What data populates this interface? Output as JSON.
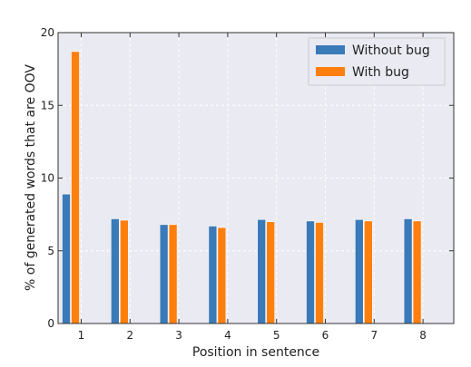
{
  "chart_data": {
    "type": "bar",
    "title": "",
    "xlabel": "Position in sentence",
    "ylabel": "% of generated words that are OOV",
    "categories": [
      "1",
      "2",
      "3",
      "4",
      "5",
      "6",
      "7",
      "8"
    ],
    "ylim": [
      0,
      20
    ],
    "yticks": [
      "0",
      "5",
      "10",
      "15",
      "20"
    ],
    "series": [
      {
        "name": "Without bug",
        "color": "#3a7ab8",
        "values": [
          8.9,
          7.2,
          6.8,
          6.7,
          7.15,
          7.05,
          7.15,
          7.2
        ]
      },
      {
        "name": "With bug",
        "color": "#ff7f0e",
        "values": [
          18.7,
          7.1,
          6.8,
          6.6,
          7.0,
          6.95,
          7.05,
          7.05
        ]
      }
    ],
    "grid": true,
    "legend_position": "top-right",
    "plot_background": "#eaeaf2"
  }
}
